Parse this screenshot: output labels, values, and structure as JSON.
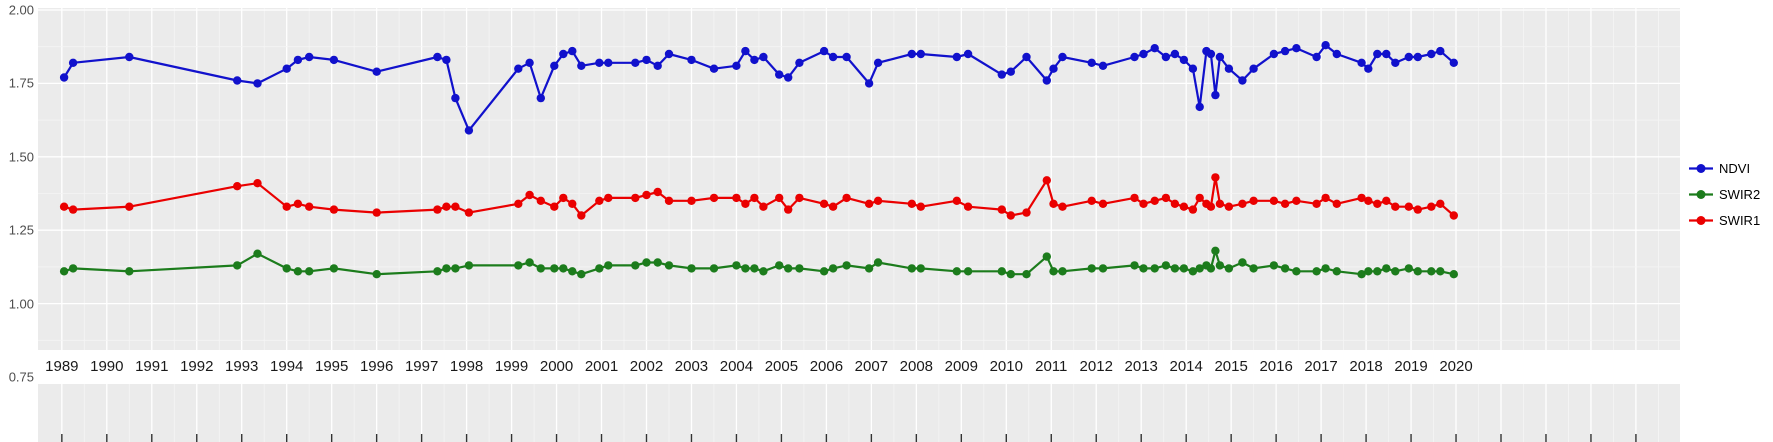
{
  "colors": {
    "panel_bg": "#EBEBEB",
    "grid_major": "#FFFFFF",
    "grid_minor": "#F5F5F5",
    "tick_mark": "#333333",
    "axis_text": "#4d4d4d",
    "label_text": "#1a1a1a"
  },
  "legend": {
    "items": [
      {
        "label": "NDVI",
        "color": "#1111CC"
      },
      {
        "label": "SWIR2",
        "color": "#1C7C1C"
      },
      {
        "label": "SWIR1",
        "color": "#EA0000"
      }
    ]
  },
  "chart_data": {
    "type": "line",
    "title": "",
    "xlabel": "",
    "ylabel": "",
    "grid": true,
    "legend_position": "right",
    "xlim": [
      1988.47,
      2024.98
    ],
    "ylim": [
      0.75,
      2.0
    ],
    "y_ticks": [
      2.0,
      1.75,
      1.5,
      1.25,
      1.0,
      0.75
    ],
    "y_tick_labels": [
      "2.00",
      "1.75",
      "1.50",
      "1.25",
      "1.00",
      "0.75"
    ],
    "x_tick_labels": [
      "1989",
      "1990",
      "1991",
      "1992",
      "1993",
      "1994",
      "1995",
      "1996",
      "1997",
      "1998",
      "1999",
      "2000",
      "2001",
      "2002",
      "2003",
      "2004",
      "2005",
      "2006",
      "2007",
      "2008",
      "2009",
      "2010",
      "2011",
      "2012",
      "2013",
      "2014",
      "2015",
      "2016",
      "2017",
      "2018",
      "2019",
      "2020"
    ],
    "x_tick_first_year": 1989,
    "x_tick_last_marked_year": 2024,
    "x": [
      1989.05,
      1989.25,
      1990.5,
      1992.9,
      1993.35,
      1994.0,
      1994.25,
      1994.5,
      1995.05,
      1996.0,
      1997.35,
      1997.55,
      1997.75,
      1998.05,
      1999.15,
      1999.4,
      1999.65,
      1999.95,
      2000.15,
      2000.35,
      2000.55,
      2000.95,
      2001.15,
      2001.75,
      2002.0,
      2002.25,
      2002.5,
      2003.0,
      2003.5,
      2004.0,
      2004.2,
      2004.4,
      2004.6,
      2004.95,
      2005.15,
      2005.4,
      2005.95,
      2006.15,
      2006.45,
      2006.95,
      2007.15,
      2007.9,
      2008.1,
      2008.9,
      2009.15,
      2009.9,
      2010.1,
      2010.45,
      2010.9,
      2011.05,
      2011.25,
      2011.9,
      2012.15,
      2012.85,
      2013.05,
      2013.3,
      2013.55,
      2013.75,
      2013.95,
      2014.15,
      2014.3,
      2014.45,
      2014.55,
      2014.65,
      2014.75,
      2014.95,
      2015.25,
      2015.5,
      2015.95,
      2016.2,
      2016.45,
      2016.9,
      2017.1,
      2017.35,
      2017.9,
      2018.05,
      2018.25,
      2018.45,
      2018.65,
      2018.95,
      2019.15,
      2019.45,
      2019.65,
      2019.95
    ],
    "series": [
      {
        "name": "NDVI",
        "color": "#1111CC",
        "values": [
          1.77,
          1.82,
          1.84,
          1.76,
          1.75,
          1.8,
          1.83,
          1.84,
          1.83,
          1.79,
          1.84,
          1.83,
          1.7,
          1.59,
          1.8,
          1.82,
          1.7,
          1.81,
          1.85,
          1.86,
          1.81,
          1.82,
          1.82,
          1.82,
          1.83,
          1.81,
          1.85,
          1.83,
          1.8,
          1.81,
          1.86,
          1.83,
          1.84,
          1.78,
          1.77,
          1.82,
          1.86,
          1.84,
          1.84,
          1.75,
          1.82,
          1.85,
          1.85,
          1.84,
          1.85,
          1.78,
          1.79,
          1.84,
          1.76,
          1.8,
          1.84,
          1.82,
          1.81,
          1.84,
          1.85,
          1.87,
          1.84,
          1.85,
          1.83,
          1.8,
          1.67,
          1.86,
          1.85,
          1.71,
          1.84,
          1.8,
          1.76,
          1.8,
          1.85,
          1.86,
          1.87,
          1.84,
          1.88,
          1.85,
          1.82,
          1.8,
          1.85,
          1.85,
          1.82,
          1.84,
          1.84,
          1.85,
          1.86,
          1.82
        ]
      },
      {
        "name": "SWIR2",
        "color": "#1C7C1C",
        "values": [
          1.11,
          1.12,
          1.11,
          1.13,
          1.17,
          1.12,
          1.11,
          1.11,
          1.12,
          1.1,
          1.11,
          1.12,
          1.12,
          1.13,
          1.13,
          1.14,
          1.12,
          1.12,
          1.12,
          1.11,
          1.1,
          1.12,
          1.13,
          1.13,
          1.14,
          1.14,
          1.13,
          1.12,
          1.12,
          1.13,
          1.12,
          1.12,
          1.11,
          1.13,
          1.12,
          1.12,
          1.11,
          1.12,
          1.13,
          1.12,
          1.14,
          1.12,
          1.12,
          1.11,
          1.11,
          1.11,
          1.1,
          1.1,
          1.16,
          1.11,
          1.11,
          1.12,
          1.12,
          1.13,
          1.12,
          1.12,
          1.13,
          1.12,
          1.12,
          1.11,
          1.12,
          1.13,
          1.12,
          1.18,
          1.13,
          1.12,
          1.14,
          1.12,
          1.13,
          1.12,
          1.11,
          1.11,
          1.12,
          1.11,
          1.1,
          1.11,
          1.11,
          1.12,
          1.11,
          1.12,
          1.11,
          1.11,
          1.11,
          1.1
        ]
      },
      {
        "name": "SWIR1",
        "color": "#EA0000",
        "values": [
          1.33,
          1.32,
          1.33,
          1.4,
          1.41,
          1.33,
          1.34,
          1.33,
          1.32,
          1.31,
          1.32,
          1.33,
          1.33,
          1.31,
          1.34,
          1.37,
          1.35,
          1.33,
          1.36,
          1.34,
          1.3,
          1.35,
          1.36,
          1.36,
          1.37,
          1.38,
          1.35,
          1.35,
          1.36,
          1.36,
          1.34,
          1.36,
          1.33,
          1.36,
          1.32,
          1.36,
          1.34,
          1.33,
          1.36,
          1.34,
          1.35,
          1.34,
          1.33,
          1.35,
          1.33,
          1.32,
          1.3,
          1.31,
          1.42,
          1.34,
          1.33,
          1.35,
          1.34,
          1.36,
          1.34,
          1.35,
          1.36,
          1.34,
          1.33,
          1.32,
          1.36,
          1.34,
          1.33,
          1.43,
          1.34,
          1.33,
          1.34,
          1.35,
          1.35,
          1.34,
          1.35,
          1.34,
          1.36,
          1.34,
          1.36,
          1.35,
          1.34,
          1.35,
          1.33,
          1.33,
          1.32,
          1.33,
          1.34,
          1.3
        ]
      }
    ]
  }
}
